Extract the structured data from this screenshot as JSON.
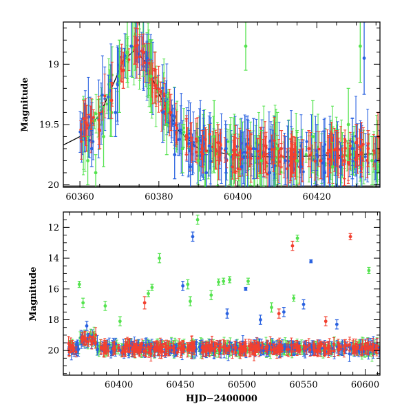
{
  "chart_data": [
    {
      "type": "scatter",
      "panel": "top",
      "title": "",
      "xlabel": "",
      "ylabel": "Magnitude",
      "xlim": [
        60355.8,
        60436
      ],
      "ylim": [
        20.02,
        18.65
      ],
      "y_inverted": true,
      "x_ticks": [
        60360,
        60380,
        60400,
        60420
      ],
      "y_ticks": [
        19,
        19.5,
        20
      ],
      "y_tick_labels": [
        "19",
        "19.5",
        "20"
      ],
      "grid": false,
      "legend": "none",
      "colors": {
        "green": "#55e34f",
        "blue": "#2a62e0",
        "red": "#f2402f",
        "model": "#000000"
      },
      "model_curve": {
        "x": [
          60355.8,
          60360,
          60365,
          60368,
          60371,
          60374,
          60377,
          60380,
          60385,
          60390,
          60400,
          60410,
          60420,
          60430,
          60436
        ],
        "y": [
          19.67,
          19.6,
          19.42,
          19.2,
          18.97,
          18.88,
          19.0,
          19.25,
          19.55,
          19.7,
          19.76,
          19.77,
          19.76,
          19.75,
          19.74
        ]
      },
      "model_curve_flat": {
        "x": [
          60355.8,
          60400,
          60436
        ],
        "y": [
          20.01,
          20.01,
          20.01
        ]
      },
      "series": [
        {
          "color": "green",
          "points": [
            {
              "x": 60362,
              "y": 19.8,
              "err": 0.2
            },
            {
              "x": 60364,
              "y": 19.9,
              "err": 0.15
            },
            {
              "x": 60366,
              "y": 19.6,
              "err": 0.25
            },
            {
              "x": 60368,
              "y": 19.4,
              "err": 0.2
            },
            {
              "x": 60370,
              "y": 19.1,
              "err": 0.3
            },
            {
              "x": 60372,
              "y": 18.9,
              "err": 0.25
            },
            {
              "x": 60374,
              "y": 18.75,
              "err": 0.3
            },
            {
              "x": 60376,
              "y": 18.85,
              "err": 0.25
            },
            {
              "x": 60378,
              "y": 19.1,
              "err": 0.3
            },
            {
              "x": 60382,
              "y": 19.5,
              "err": 0.25
            },
            {
              "x": 60386,
              "y": 19.7,
              "err": 0.2
            },
            {
              "x": 60390,
              "y": 19.8,
              "err": 0.2
            },
            {
              "x": 60394,
              "y": 19.6,
              "err": 0.3
            },
            {
              "x": 60398,
              "y": 19.75,
              "err": 0.25
            },
            {
              "x": 60402,
              "y": 18.85,
              "err": 0.2
            },
            {
              "x": 60406,
              "y": 19.8,
              "err": 0.25
            },
            {
              "x": 60410,
              "y": 19.7,
              "err": 0.3
            },
            {
              "x": 60415,
              "y": 19.8,
              "err": 0.25
            },
            {
              "x": 60419,
              "y": 19.6,
              "err": 0.3
            },
            {
              "x": 60424,
              "y": 19.85,
              "err": 0.2
            },
            {
              "x": 60428,
              "y": 19.5,
              "err": 0.3
            },
            {
              "x": 60431,
              "y": 18.85,
              "err": 0.3
            },
            {
              "x": 60434,
              "y": 19.8,
              "err": 0.2
            }
          ]
        },
        {
          "color": "blue",
          "points": [
            {
              "x": 60363,
              "y": 19.7,
              "err": 0.15
            },
            {
              "x": 60369,
              "y": 19.4,
              "err": 0.2
            },
            {
              "x": 60373,
              "y": 18.85,
              "err": 0.25
            },
            {
              "x": 60377,
              "y": 18.95,
              "err": 0.2
            },
            {
              "x": 60381,
              "y": 19.4,
              "err": 0.25
            },
            {
              "x": 60384,
              "y": 19.75,
              "err": 0.2
            },
            {
              "x": 60388,
              "y": 19.85,
              "err": 0.2
            },
            {
              "x": 60392,
              "y": 19.9,
              "err": 0.15
            },
            {
              "x": 60397,
              "y": 19.7,
              "err": 0.2
            },
            {
              "x": 60401,
              "y": 19.85,
              "err": 0.2
            },
            {
              "x": 60404,
              "y": 19.7,
              "err": 0.25
            },
            {
              "x": 60408,
              "y": 19.9,
              "err": 0.15
            },
            {
              "x": 60412,
              "y": 19.8,
              "err": 0.2
            },
            {
              "x": 60416,
              "y": 19.85,
              "err": 0.2
            },
            {
              "x": 60420,
              "y": 19.75,
              "err": 0.25
            },
            {
              "x": 60422,
              "y": 19.9,
              "err": 0.15
            },
            {
              "x": 60426,
              "y": 19.85,
              "err": 0.2
            },
            {
              "x": 60429,
              "y": 19.7,
              "err": 0.25
            },
            {
              "x": 60432,
              "y": 18.95,
              "err": 0.3
            },
            {
              "x": 60435,
              "y": 19.8,
              "err": 0.2
            }
          ]
        },
        {
          "color": "red",
          "points": [
            {
              "x": 60361,
              "y": 19.45,
              "err": 0.15
            },
            {
              "x": 60365,
              "y": 19.55,
              "err": 0.15
            },
            {
              "x": 60368,
              "y": 19.3,
              "err": 0.15
            },
            {
              "x": 60371,
              "y": 19.05,
              "err": 0.15
            },
            {
              "x": 60374,
              "y": 18.85,
              "err": 0.15
            },
            {
              "x": 60376,
              "y": 18.9,
              "err": 0.15
            },
            {
              "x": 60379,
              "y": 19.05,
              "err": 0.15
            },
            {
              "x": 60383,
              "y": 19.4,
              "err": 0.15
            },
            {
              "x": 60387,
              "y": 19.6,
              "err": 0.15
            },
            {
              "x": 60391,
              "y": 19.7,
              "err": 0.15
            },
            {
              "x": 60395,
              "y": 19.65,
              "err": 0.15
            },
            {
              "x": 60399,
              "y": 19.75,
              "err": 0.15
            },
            {
              "x": 60403,
              "y": 19.7,
              "err": 0.15
            },
            {
              "x": 60407,
              "y": 19.75,
              "err": 0.15
            },
            {
              "x": 60411,
              "y": 19.7,
              "err": 0.15
            },
            {
              "x": 60414,
              "y": 19.75,
              "err": 0.15
            },
            {
              "x": 60418,
              "y": 19.7,
              "err": 0.15
            },
            {
              "x": 60421,
              "y": 19.8,
              "err": 0.15
            },
            {
              "x": 60425,
              "y": 19.7,
              "err": 0.15
            },
            {
              "x": 60427,
              "y": 19.8,
              "err": 0.15
            },
            {
              "x": 60430,
              "y": 19.65,
              "err": 0.15
            },
            {
              "x": 60433,
              "y": 19.7,
              "err": 0.15
            },
            {
              "x": 60435.5,
              "y": 19.6,
              "err": 0.2
            }
          ]
        }
      ]
    },
    {
      "type": "scatter",
      "panel": "bottom",
      "title": "",
      "xlabel": "HJD−2400000",
      "ylabel": "Magnitude",
      "xlim": [
        60355,
        60612
      ],
      "ylim": [
        21.6,
        11.0
      ],
      "y_inverted": true,
      "x_ticks": [
        60400,
        60450,
        60500,
        60550,
        60600
      ],
      "y_ticks": [
        12,
        14,
        16,
        18,
        20
      ],
      "y_tick_labels": [
        "12",
        "14",
        "16",
        "18",
        "20"
      ],
      "grid": false,
      "legend": "none",
      "colors": {
        "green": "#55e34f",
        "blue": "#2a62e0",
        "red": "#f2402f"
      },
      "series": [
        {
          "color": "green",
          "points": [
            {
              "x": 60368,
              "y": 15.7,
              "err": 0.2
            },
            {
              "x": 60371,
              "y": 16.9,
              "err": 0.3
            },
            {
              "x": 60389,
              "y": 17.1,
              "err": 0.3
            },
            {
              "x": 60401,
              "y": 18.1,
              "err": 0.3
            },
            {
              "x": 60424,
              "y": 16.3,
              "err": 0.2
            },
            {
              "x": 60427,
              "y": 15.9,
              "err": 0.2
            },
            {
              "x": 60433,
              "y": 14.0,
              "err": 0.3
            },
            {
              "x": 60456,
              "y": 15.7,
              "err": 0.3
            },
            {
              "x": 60458,
              "y": 16.8,
              "err": 0.3
            },
            {
              "x": 60464,
              "y": 11.5,
              "err": 0.3
            },
            {
              "x": 60475,
              "y": 16.4,
              "err": 0.3
            },
            {
              "x": 60481,
              "y": 15.55,
              "err": 0.2
            },
            {
              "x": 60485,
              "y": 15.5,
              "err": 0.2
            },
            {
              "x": 60490,
              "y": 15.4,
              "err": 0.2
            },
            {
              "x": 60505,
              "y": 15.5,
              "err": 0.2
            },
            {
              "x": 60524,
              "y": 17.2,
              "err": 0.3
            },
            {
              "x": 60542,
              "y": 16.6,
              "err": 0.2
            },
            {
              "x": 60545,
              "y": 12.7,
              "err": 0.2
            },
            {
              "x": 60603,
              "y": 14.8,
              "err": 0.2
            }
          ]
        },
        {
          "color": "blue",
          "points": [
            {
              "x": 60374,
              "y": 18.4,
              "err": 0.3
            },
            {
              "x": 60452,
              "y": 15.8,
              "err": 0.3
            },
            {
              "x": 60460,
              "y": 12.6,
              "err": 0.3
            },
            {
              "x": 60488,
              "y": 17.6,
              "err": 0.3
            },
            {
              "x": 60503,
              "y": 16.0,
              "err": 0.1
            },
            {
              "x": 60515,
              "y": 18.0,
              "err": 0.3
            },
            {
              "x": 60534,
              "y": 17.5,
              "err": 0.3
            },
            {
              "x": 60550,
              "y": 17.0,
              "err": 0.3
            },
            {
              "x": 60556,
              "y": 14.2,
              "err": 0.1
            },
            {
              "x": 60577,
              "y": 18.3,
              "err": 0.3
            }
          ]
        },
        {
          "color": "red",
          "points": [
            {
              "x": 60421,
              "y": 16.9,
              "err": 0.4
            },
            {
              "x": 60530,
              "y": 17.6,
              "err": 0.3
            },
            {
              "x": 60541,
              "y": 13.2,
              "err": 0.3
            },
            {
              "x": 60568,
              "y": 18.1,
              "err": 0.3
            },
            {
              "x": 60588,
              "y": 12.6,
              "err": 0.2
            }
          ]
        }
      ]
    }
  ]
}
